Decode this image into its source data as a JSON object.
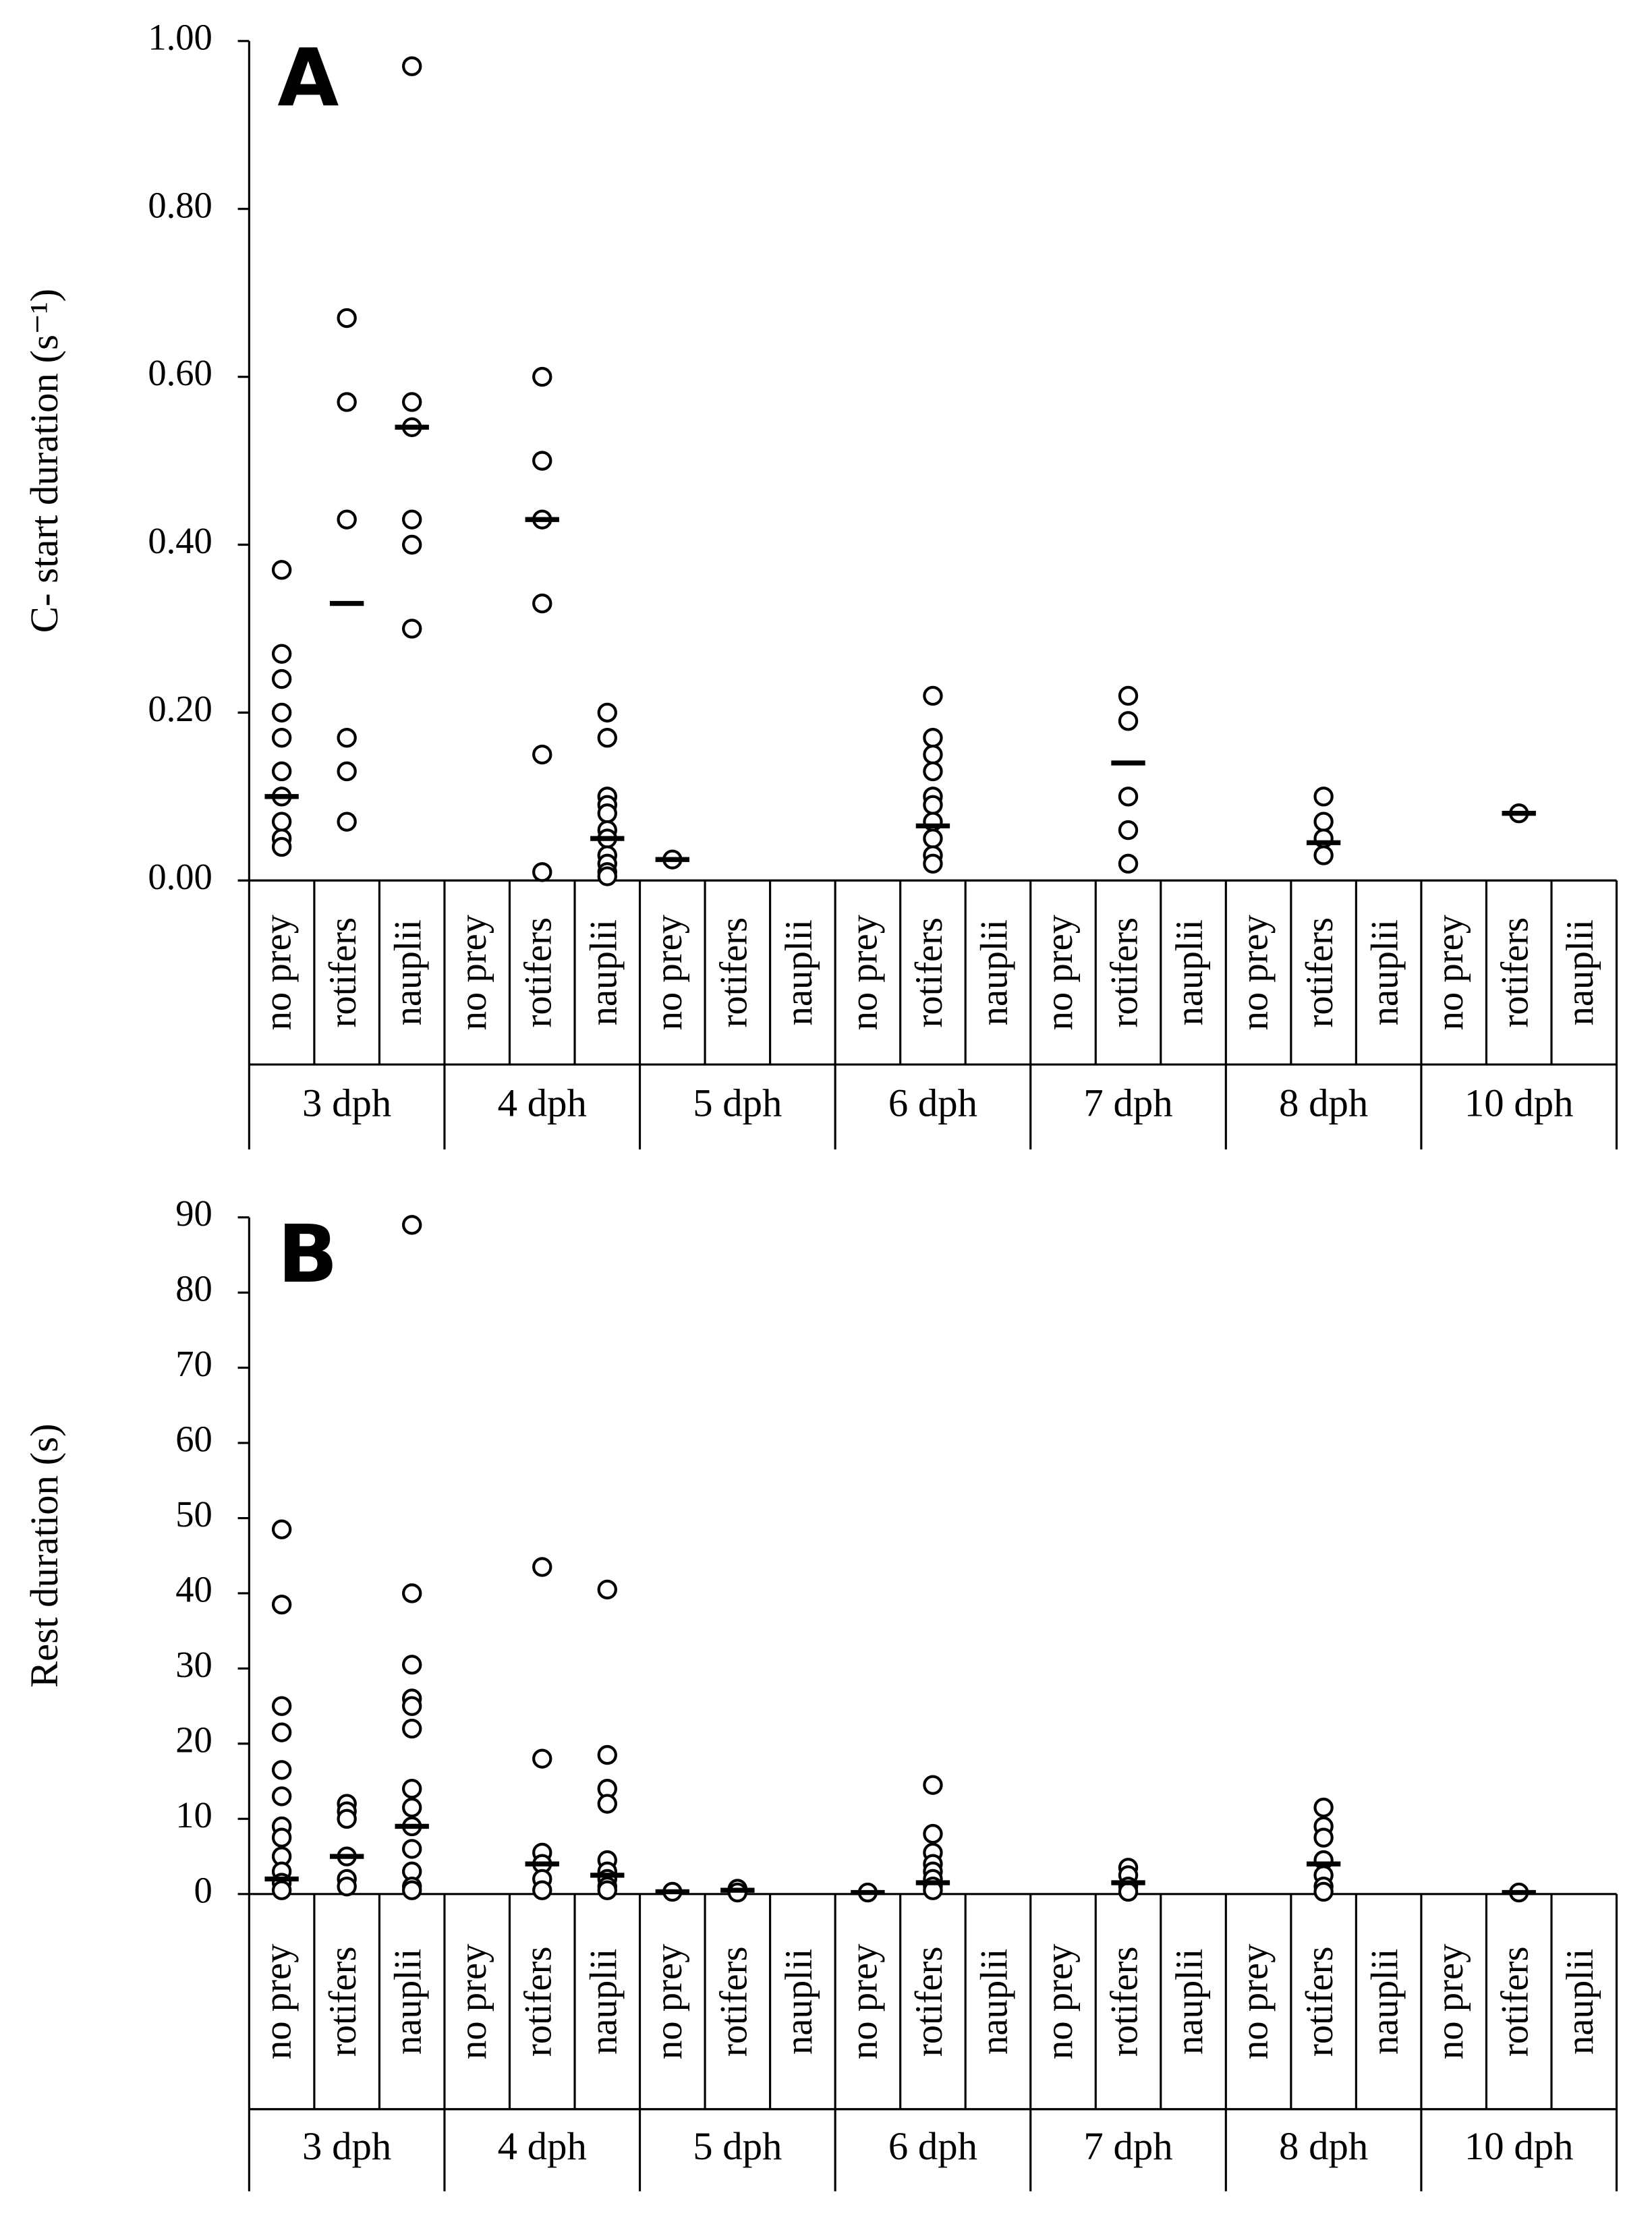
{
  "chart_data": [
    {
      "type": "strip",
      "panel_label": "A",
      "ylabel": "C- start duration (s⁻¹)",
      "ylim": [
        0,
        1
      ],
      "yticks": [
        {
          "value": 0,
          "label": "0.00"
        },
        {
          "value": 0.2,
          "label": "0.20"
        },
        {
          "value": 0.4,
          "label": "0.40"
        },
        {
          "value": 0.6,
          "label": "0.60"
        },
        {
          "value": 0.8,
          "label": "0.80"
        },
        {
          "value": 1,
          "label": "1.00"
        }
      ],
      "groups": [
        "3 dph",
        "4 dph",
        "5 dph",
        "6 dph",
        "7 dph",
        "8 dph",
        "10 dph"
      ],
      "categories": [
        "no prey",
        "rotifers",
        "nauplii",
        "no prey",
        "rotifers",
        "nauplii",
        "no prey",
        "rotifers",
        "nauplii",
        "no prey",
        "rotifers",
        "nauplii",
        "no prey",
        "rotifers",
        "nauplii",
        "no prey",
        "rotifers",
        "nauplii",
        "no prey",
        "rotifers",
        "nauplii"
      ],
      "points": [
        [
          0.37,
          0.27,
          0.24,
          0.2,
          0.17,
          0.13,
          0.1,
          0.07,
          0.05,
          0.04
        ],
        [
          0.67,
          0.57,
          0.43,
          0.17,
          0.13,
          0.07
        ],
        [
          0.97,
          0.57,
          0.54,
          0.43,
          0.4,
          0.3
        ],
        [],
        [
          0.6,
          0.5,
          0.43,
          0.33,
          0.15,
          0.01
        ],
        [
          0.2,
          0.17,
          0.1,
          0.09,
          0.08,
          0.06,
          0.05,
          0.03,
          0.02,
          0.01,
          0.005
        ],
        [
          0.025
        ],
        [],
        [],
        [],
        [
          0.22,
          0.17,
          0.15,
          0.13,
          0.1,
          0.09,
          0.07,
          0.05,
          0.03,
          0.02
        ],
        [],
        [],
        [
          0.22,
          0.19,
          0.1,
          0.06,
          0.02
        ],
        [],
        [],
        [
          0.1,
          0.07,
          0.05,
          0.03
        ],
        [],
        [],
        [
          0.08
        ],
        []
      ],
      "medians": [
        0.1,
        0.33,
        0.54,
        null,
        0.43,
        0.05,
        0.025,
        null,
        null,
        null,
        0.065,
        null,
        null,
        0.14,
        null,
        null,
        0.045,
        null,
        null,
        0.08,
        null
      ]
    },
    {
      "type": "strip",
      "panel_label": "B",
      "ylabel": "Rest duration (s)",
      "ylim": [
        0,
        90
      ],
      "yticks": [
        0,
        10,
        20,
        30,
        40,
        50,
        60,
        70,
        80,
        90
      ],
      "groups": [
        "3 dph",
        "4 dph",
        "5 dph",
        "6 dph",
        "7 dph",
        "8 dph",
        "10 dph"
      ],
      "categories": [
        "no prey",
        "rotifers",
        "nauplii",
        "no prey",
        "rotifers",
        "nauplii",
        "no prey",
        "rotifers",
        "nauplii",
        "no prey",
        "rotifers",
        "nauplii",
        "no prey",
        "rotifers",
        "nauplii",
        "no prey",
        "rotifers",
        "nauplii",
        "no prey",
        "rotifers",
        "nauplii"
      ],
      "points": [
        [
          48.5,
          38.5,
          25,
          21.5,
          16.5,
          13,
          9,
          7.5,
          5,
          3,
          1.5,
          0.5
        ],
        [
          12,
          11,
          10,
          5,
          2,
          1
        ],
        [
          89,
          40,
          30.5,
          26,
          25,
          22,
          14,
          11.5,
          9,
          6,
          3,
          1,
          0.5
        ],
        [],
        [
          43.5,
          18,
          5.5,
          4,
          2,
          0.5
        ],
        [
          40.5,
          18.5,
          14,
          12,
          4.5,
          3,
          2,
          1,
          0.5
        ],
        [
          0.3
        ],
        [
          0.7,
          0.2
        ],
        [],
        [
          0.2
        ],
        [
          14.5,
          8,
          5.5,
          4,
          3,
          2,
          1,
          0.5
        ],
        [],
        [],
        [
          3.5,
          2.5,
          1,
          0.3
        ],
        [],
        [],
        [
          11.5,
          9,
          7.5,
          4.5,
          2.5,
          1,
          0.3
        ],
        [],
        [],
        [
          0.2
        ],
        []
      ],
      "medians": [
        2,
        5,
        9,
        null,
        4,
        2.5,
        0.3,
        0.5,
        null,
        0.2,
        1.5,
        null,
        null,
        1.5,
        null,
        null,
        4,
        null,
        null,
        0.2,
        null
      ]
    }
  ]
}
